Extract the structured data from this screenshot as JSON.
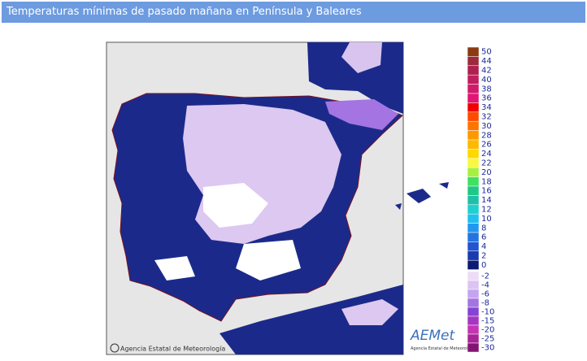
{
  "header": {
    "title": "Temperaturas mínimas de pasado mañana en Península y Baleares"
  },
  "map": {
    "credit": "Agencia Estatal de Meteorología",
    "logo": "AEMet",
    "logo_subtitle": "Agencia Estatal de Meteorología"
  },
  "legend": {
    "warm": [
      {
        "label": 50,
        "color": "#8b3a12"
      },
      {
        "label": 44,
        "color": "#9c2a3c"
      },
      {
        "label": 42,
        "color": "#ad2050"
      },
      {
        "label": 40,
        "color": "#c01e5e"
      },
      {
        "label": 38,
        "color": "#d21a6a"
      },
      {
        "label": 36,
        "color": "#e21474"
      },
      {
        "label": 34,
        "color": "#f00000"
      },
      {
        "label": 32,
        "color": "#ff4a00"
      },
      {
        "label": 30,
        "color": "#ff7400"
      },
      {
        "label": 28,
        "color": "#ff9800"
      },
      {
        "label": 26,
        "color": "#ffb800"
      },
      {
        "label": 24,
        "color": "#ffd800"
      },
      {
        "label": 22,
        "color": "#f8f840"
      },
      {
        "label": 20,
        "color": "#a8f040"
      },
      {
        "label": 18,
        "color": "#40e060"
      },
      {
        "label": 16,
        "color": "#20c888"
      },
      {
        "label": 14,
        "color": "#20c0a8"
      },
      {
        "label": 12,
        "color": "#20d0d0"
      },
      {
        "label": 10,
        "color": "#20c0f0"
      },
      {
        "label": 8,
        "color": "#2098f0"
      },
      {
        "label": 6,
        "color": "#2474e0"
      },
      {
        "label": 4,
        "color": "#2254d0"
      },
      {
        "label": 2,
        "color": "#1a3ab0"
      },
      {
        "label": 0,
        "color": "#0c1a72"
      }
    ],
    "cold": [
      {
        "label": -2,
        "color": "#ecdcf4"
      },
      {
        "label": -4,
        "color": "#dcc4f2"
      },
      {
        "label": -6,
        "color": "#c4a4f0"
      },
      {
        "label": -8,
        "color": "#a474e2"
      },
      {
        "label": -10,
        "color": "#8444d4"
      },
      {
        "label": -15,
        "color": "#a834c4"
      },
      {
        "label": -20,
        "color": "#c434b4"
      },
      {
        "label": -25,
        "color": "#a82494"
      },
      {
        "label": -30,
        "color": "#841474"
      }
    ]
  }
}
